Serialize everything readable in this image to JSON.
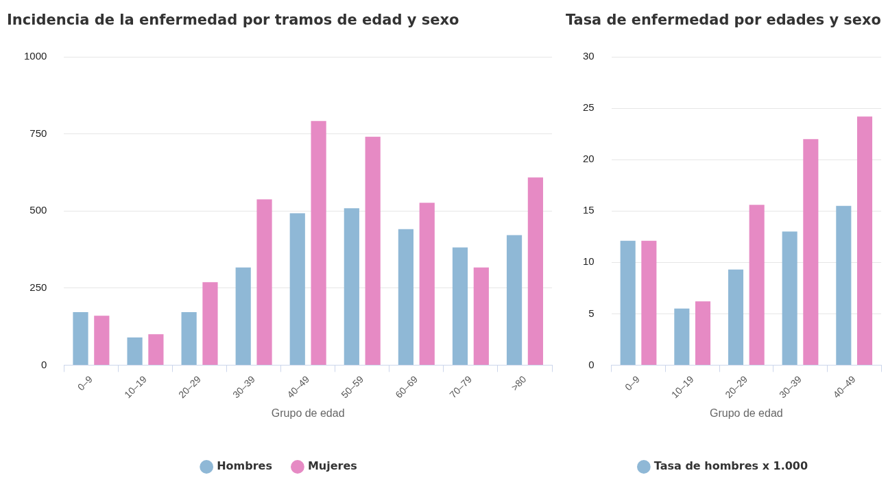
{
  "chart_data": [
    {
      "type": "bar",
      "title": "Incidencia de la enfermedad por tramos de edad y sexo",
      "xlabel": "Grupo de edad",
      "categories": [
        "0–9",
        "10–19",
        "20–29",
        "30–39",
        "40–49",
        "50–59",
        "60–69",
        "70–79",
        ">80"
      ],
      "series": [
        {
          "name": "Hombres",
          "color": "#8fb8d6",
          "values": [
            172,
            90,
            172,
            317,
            493,
            509,
            441,
            382,
            422
          ]
        },
        {
          "name": "Mujeres",
          "color": "#e68ac4",
          "values": [
            160,
            100,
            269,
            538,
            792,
            741,
            527,
            317,
            609
          ]
        }
      ],
      "ylim": [
        0,
        1000
      ],
      "yticks": [
        0,
        250,
        500,
        750,
        1000
      ],
      "grid": "y",
      "legend": "bottom"
    },
    {
      "type": "bar",
      "title": "Tasa de enfermedad por edades y sexo",
      "xlabel": "Grupo de edad",
      "categories": [
        "0–9",
        "10–19",
        "20–29",
        "30–39",
        "40–49"
      ],
      "series": [
        {
          "name": "Tasa de hombres x 1.000",
          "color": "#8fb8d6",
          "values": [
            12.1,
            5.5,
            9.3,
            13.0,
            15.5
          ]
        },
        {
          "color": "#e68ac4",
          "values": [
            12.1,
            6.2,
            15.6,
            22.0,
            24.2
          ]
        }
      ],
      "ylim": [
        0,
        30
      ],
      "yticks": [
        0,
        5,
        10,
        15,
        20,
        25,
        30
      ],
      "grid": "y",
      "legend": "bottom"
    }
  ]
}
